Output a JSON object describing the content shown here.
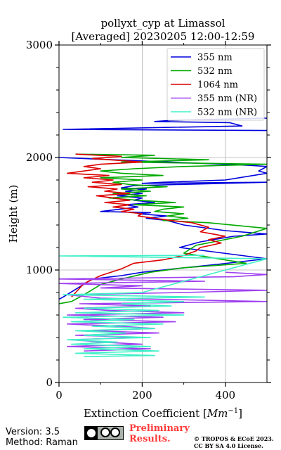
{
  "chart_data": {
    "type": "line",
    "title_line1": "pollyxt_cyp at Limassol",
    "title_line2": "[Averaged] 20230205 12:00-12:59",
    "xlabel_prefix": "Extinction Coefficient [",
    "xlabel_unit": "Mm",
    "xlabel_exp": "−1",
    "xlabel_suffix": "]",
    "ylabel": "Height (m)",
    "xlim": [
      0,
      500
    ],
    "ylim": [
      0,
      3000
    ],
    "xticks": [
      0,
      200,
      400
    ],
    "yticks": [
      0,
      1000,
      2000,
      3000
    ],
    "grid": true,
    "legend_position": "top-right",
    "series": [
      {
        "name": "355 nm",
        "color": "#0000dd",
        "points": [
          [
            500,
            2350
          ],
          [
            380,
            2340
          ],
          [
            270,
            2330
          ],
          [
            230,
            2320
          ],
          [
            410,
            2310
          ],
          [
            440,
            2280
          ],
          [
            10,
            2250
          ],
          [
            500,
            2240
          ]
        ]
      },
      {
        "name": "355 nm",
        "color": "#0000dd",
        "points": [
          [
            0,
            2000
          ],
          [
            460,
            1930
          ],
          [
            500,
            1920
          ],
          [
            480,
            1880
          ],
          [
            500,
            1860
          ],
          [
            400,
            1800
          ],
          [
            250,
            1780
          ],
          [
            200,
            1770
          ],
          [
            500,
            1780
          ],
          [
            180,
            1750
          ],
          [
            150,
            1730
          ],
          [
            210,
            1720
          ],
          [
            160,
            1700
          ],
          [
            200,
            1680
          ],
          [
            140,
            1660
          ],
          [
            200,
            1640
          ],
          [
            180,
            1620
          ],
          [
            230,
            1600
          ],
          [
            160,
            1580
          ],
          [
            190,
            1560
          ],
          [
            100,
            1520
          ],
          [
            220,
            1510
          ],
          [
            190,
            1500
          ],
          [
            260,
            1480
          ],
          [
            210,
            1460
          ],
          [
            260,
            1440
          ],
          [
            300,
            1400
          ],
          [
            400,
            1350
          ],
          [
            500,
            1320
          ],
          [
            420,
            1300
          ],
          [
            340,
            1250
          ],
          [
            290,
            1200
          ],
          [
            500,
            1100
          ],
          [
            380,
            1050
          ],
          [
            250,
            1000
          ],
          [
            200,
            980
          ],
          [
            150,
            950
          ],
          [
            80,
            920
          ],
          [
            10,
            760
          ],
          [
            0,
            740
          ]
        ]
      },
      {
        "name": "532 nm",
        "color": "#00aa00",
        "points": [
          [
            40,
            2030
          ],
          [
            230,
            2020
          ],
          [
            150,
            2000
          ],
          [
            360,
            1980
          ],
          [
            150,
            1960
          ],
          [
            500,
            1940
          ],
          [
            300,
            1920
          ],
          [
            180,
            1900
          ],
          [
            100,
            1880
          ],
          [
            150,
            1860
          ],
          [
            250,
            1840
          ],
          [
            100,
            1820
          ],
          [
            200,
            1800
          ],
          [
            130,
            1780
          ],
          [
            170,
            1760
          ],
          [
            260,
            1740
          ],
          [
            150,
            1720
          ],
          [
            220,
            1700
          ],
          [
            130,
            1680
          ],
          [
            210,
            1660
          ],
          [
            120,
            1640
          ],
          [
            190,
            1620
          ],
          [
            280,
            1600
          ],
          [
            180,
            1580
          ],
          [
            300,
            1560
          ],
          [
            250,
            1540
          ],
          [
            230,
            1520
          ],
          [
            300,
            1500
          ],
          [
            260,
            1480
          ],
          [
            310,
            1460
          ],
          [
            250,
            1440
          ],
          [
            360,
            1420
          ],
          [
            500,
            1370
          ],
          [
            440,
            1300
          ],
          [
            330,
            1220
          ],
          [
            300,
            1150
          ],
          [
            350,
            1120
          ],
          [
            450,
            1060
          ],
          [
            300,
            1020
          ],
          [
            220,
            980
          ],
          [
            150,
            920
          ],
          [
            100,
            870
          ],
          [
            60,
            780
          ],
          [
            30,
            720
          ],
          [
            0,
            700
          ]
        ]
      },
      {
        "name": "1064 nm",
        "color": "#dd0000",
        "points": [
          [
            40,
            2030
          ],
          [
            150,
            2010
          ],
          [
            80,
            1990
          ],
          [
            200,
            1960
          ],
          [
            100,
            1940
          ],
          [
            60,
            1920
          ],
          [
            100,
            1900
          ],
          [
            60,
            1880
          ],
          [
            20,
            1860
          ],
          [
            120,
            1840
          ],
          [
            60,
            1820
          ],
          [
            130,
            1800
          ],
          [
            80,
            1780
          ],
          [
            150,
            1760
          ],
          [
            70,
            1740
          ],
          [
            140,
            1720
          ],
          [
            110,
            1700
          ],
          [
            170,
            1680
          ],
          [
            90,
            1660
          ],
          [
            130,
            1640
          ],
          [
            170,
            1620
          ],
          [
            110,
            1600
          ],
          [
            170,
            1580
          ],
          [
            130,
            1560
          ],
          [
            180,
            1540
          ],
          [
            150,
            1520
          ],
          [
            200,
            1500
          ],
          [
            190,
            1480
          ],
          [
            230,
            1460
          ],
          [
            270,
            1440
          ],
          [
            320,
            1420
          ],
          [
            360,
            1380
          ],
          [
            340,
            1340
          ],
          [
            370,
            1320
          ],
          [
            400,
            1300
          ],
          [
            360,
            1270
          ],
          [
            390,
            1240
          ],
          [
            340,
            1200
          ],
          [
            330,
            1170
          ],
          [
            300,
            1130
          ],
          [
            250,
            1090
          ],
          [
            180,
            1060
          ],
          [
            150,
            1010
          ],
          [
            100,
            950
          ],
          [
            60,
            880
          ],
          [
            40,
            800
          ],
          [
            30,
            760
          ]
        ]
      },
      {
        "name": "355 nm (NR)",
        "color": "#a040f0",
        "points": [
          [
            400,
            980
          ],
          [
            500,
            960
          ],
          [
            420,
            940
          ],
          [
            0,
            920
          ],
          [
            350,
            900
          ],
          [
            0,
            880
          ],
          [
            200,
            860
          ],
          [
            100,
            840
          ],
          [
            500,
            820
          ],
          [
            300,
            800
          ],
          [
            20,
            780
          ],
          [
            100,
            750
          ],
          [
            500,
            720
          ],
          [
            50,
            700
          ],
          [
            220,
            680
          ],
          [
            40,
            660
          ],
          [
            120,
            640
          ],
          [
            300,
            620
          ],
          [
            20,
            600
          ],
          [
            250,
            580
          ],
          [
            60,
            560
          ],
          [
            280,
            540
          ],
          [
            20,
            520
          ],
          [
            150,
            500
          ],
          [
            230,
            480
          ],
          [
            70,
            460
          ],
          [
            240,
            440
          ],
          [
            40,
            420
          ],
          [
            190,
            400
          ],
          [
            30,
            380
          ],
          [
            100,
            360
          ],
          [
            200,
            340
          ],
          [
            20,
            320
          ],
          [
            220,
            300
          ],
          [
            60,
            280
          ]
        ]
      },
      {
        "name": "532 nm (NR)",
        "color": "#40f0c8",
        "points": [
          [
            350,
            1130
          ],
          [
            0,
            1125
          ],
          [
            500,
            1100
          ],
          [
            200,
            800
          ],
          [
            10,
            780
          ],
          [
            350,
            760
          ],
          [
            60,
            740
          ],
          [
            300,
            720
          ],
          [
            150,
            700
          ],
          [
            270,
            680
          ],
          [
            60,
            660
          ],
          [
            240,
            640
          ],
          [
            40,
            620
          ],
          [
            300,
            600
          ],
          [
            10,
            580
          ],
          [
            180,
            560
          ],
          [
            30,
            540
          ],
          [
            250,
            520
          ],
          [
            80,
            500
          ],
          [
            230,
            480
          ],
          [
            40,
            460
          ],
          [
            160,
            440
          ],
          [
            60,
            420
          ],
          [
            220,
            400
          ],
          [
            20,
            380
          ],
          [
            140,
            360
          ],
          [
            30,
            340
          ],
          [
            220,
            320
          ],
          [
            60,
            300
          ],
          [
            240,
            280
          ],
          [
            40,
            260
          ],
          [
            230,
            240
          ],
          [
            60,
            230
          ]
        ]
      }
    ]
  },
  "footer": {
    "version": "Version: 3.5",
    "method": "Method: Raman",
    "preliminary_line1": "Preliminary",
    "preliminary_line2": "Results.",
    "copyright_line1": "© TROPOS & ECoE 2023.",
    "copyright_line2": "CC BY SA 4.0 License.",
    "license_badge": "BY SA"
  }
}
